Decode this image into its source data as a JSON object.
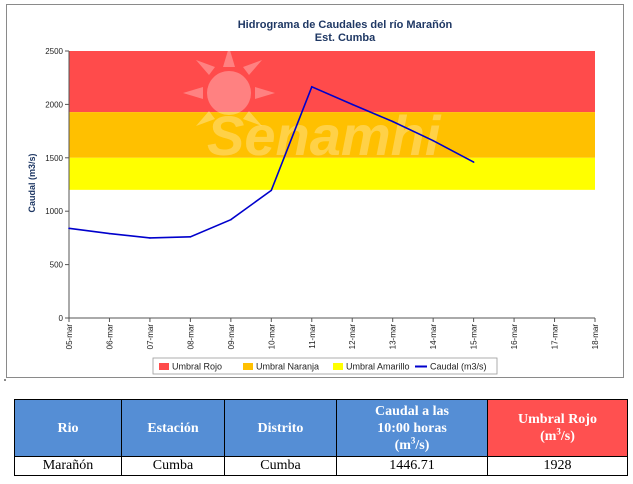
{
  "chart_data": {
    "type": "line",
    "title": "Hidrograma de Caudales del río Marañón",
    "subtitle": "Est. Cumba",
    "ylabel": "Caudal (m3/s)",
    "xlabel": "",
    "ylim": [
      0,
      2500
    ],
    "yticks": [
      0,
      500,
      1000,
      1500,
      2000,
      2500
    ],
    "categories": [
      "05-mar",
      "06-mar",
      "07-mar",
      "08-mar",
      "09-mar",
      "10-mar",
      "11-mar",
      "12-mar",
      "13-mar",
      "14-mar",
      "15-mar",
      "16-mar",
      "17-mar",
      "18-mar"
    ],
    "threshold_bands": [
      {
        "name": "Umbral Rojo",
        "from": 1928,
        "to": 2500,
        "color": "#ff4b4b"
      },
      {
        "name": "Umbral Naranja",
        "from": 1500,
        "to": 1928,
        "color": "#ffc000"
      },
      {
        "name": "Umbral Amarillo",
        "from": 1200,
        "to": 1500,
        "color": "#ffff00"
      }
    ],
    "series": [
      {
        "name": "Caudal (m3/s)",
        "color": "#0000cc",
        "values": [
          840,
          790,
          750,
          760,
          920,
          1195,
          2165,
          2000,
          1840,
          1660,
          1460,
          null,
          null,
          null
        ]
      }
    ],
    "legend_position": "bottom",
    "watermark": "Senamhi"
  },
  "table": {
    "headers": {
      "rio": "Rio",
      "estacion": "Estación",
      "distrito": "Distrito",
      "caudal_line1": "Caudal a las",
      "caudal_line2": "10:00 horas",
      "caudal_unit_pre": "(m",
      "caudal_unit_sup": "3",
      "caudal_unit_post": "/s)",
      "umbral_line1": "Umbral Rojo",
      "umbral_unit_pre": "(m",
      "umbral_unit_sup": "3",
      "umbral_unit_post": "/s)"
    },
    "row": {
      "rio": "Marañón",
      "estacion": "Cumba",
      "distrito": "Cumba",
      "caudal": "1446.71",
      "umbral_rojo": "1928"
    }
  }
}
